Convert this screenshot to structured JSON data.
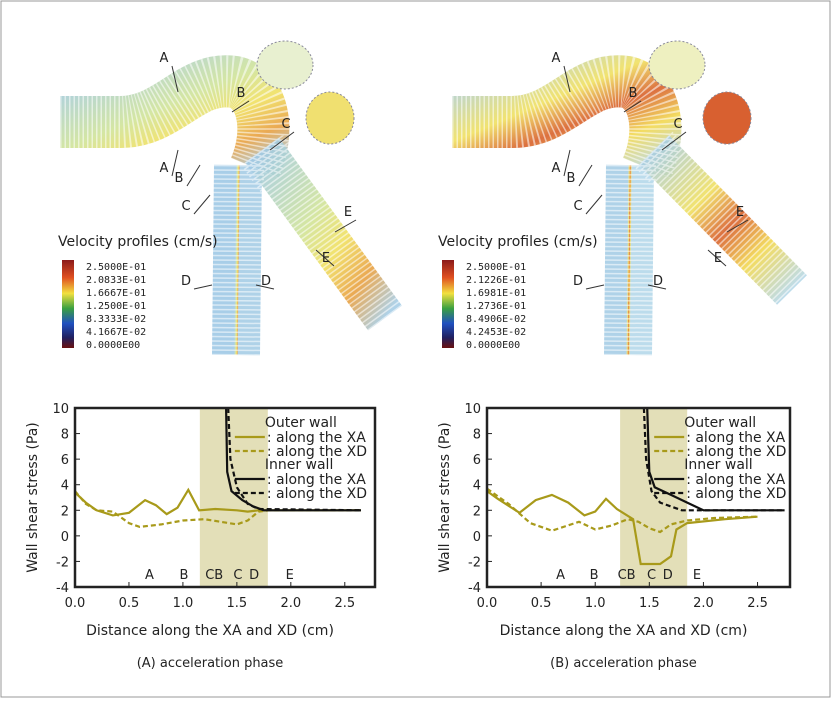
{
  "panels": [
    {
      "legend_title": "Velocity profiles (cm/s)",
      "legend_labels": [
        "2.5000E-01",
        "2.0833E-01",
        "1.6667E-01",
        "1.2500E-01",
        "8.3333E-02",
        "4.1667E-02",
        "0.0000E00"
      ],
      "section_labels": [
        "A",
        "A",
        "B",
        "B",
        "C",
        "C",
        "D",
        "D",
        "E",
        "E"
      ]
    },
    {
      "legend_title": "Velocity profiles (cm/s)",
      "legend_labels": [
        "2.5000E-01",
        "2.1226E-01",
        "1.6981E-01",
        "1.2736E-01",
        "8.4906E-02",
        "4.2453E-02",
        "0.0000E00"
      ],
      "section_labels": [
        "A",
        "A",
        "B",
        "B",
        "C",
        "C",
        "D",
        "D",
        "E",
        "E"
      ]
    }
  ],
  "chart_data": [
    {
      "type": "line",
      "caption": "(A) acceleration phase",
      "y_label": "Wall shear stress (Pa)",
      "x_label": "Distance along the XA and XD (cm)",
      "xlim": [
        0,
        2.78
      ],
      "ylim": [
        -4,
        10
      ],
      "xticks": [
        {
          "value": 0,
          "label": "0.0"
        },
        0.5,
        {
          "value": 1,
          "label": "1.0"
        },
        1.5,
        {
          "value": 2,
          "label": "2.0"
        },
        2.5
      ],
      "yticks": [
        -4,
        -2,
        0,
        2,
        4,
        6,
        8,
        10
      ],
      "shade": [
        1.157,
        1.787
      ],
      "shade_color": "#e3dfb8",
      "legend_groups": [
        "Outer wall",
        "Inner wall"
      ],
      "series": [
        {
          "name": ": along the XA",
          "color": "#a89a1a",
          "dash": false,
          "x": [
            0,
            0.1,
            0.2,
            0.35,
            0.5,
            0.65,
            0.75,
            0.85,
            0.95,
            1.05,
            1.15,
            1.3,
            1.5,
            1.6,
            1.7,
            2.0,
            2.65
          ],
          "values": [
            3.4,
            2.6,
            2.0,
            1.6,
            1.8,
            2.8,
            2.4,
            1.7,
            2.2,
            3.6,
            2.0,
            2.1,
            2.0,
            1.9,
            2.0,
            2.0,
            2.0
          ]
        },
        {
          "name": ": along the XD",
          "color": "#a89a1a",
          "dash": true,
          "x": [
            0,
            0.1,
            0.2,
            0.35,
            0.5,
            0.6,
            0.8,
            1.0,
            1.2,
            1.35,
            1.5,
            1.6,
            1.7,
            1.8,
            2.65
          ],
          "values": [
            3.5,
            2.5,
            2.0,
            1.9,
            1.0,
            0.7,
            0.9,
            1.2,
            1.3,
            1.1,
            0.9,
            1.2,
            1.9,
            2.0,
            2.0
          ]
        },
        {
          "name": ": along the XA",
          "color": "#111111",
          "dash": false,
          "x": [
            1.4,
            1.41,
            1.45,
            1.55,
            1.65,
            1.75,
            2.65
          ],
          "values": [
            10,
            5,
            3.5,
            2.8,
            2.3,
            2.0,
            2.0
          ]
        },
        {
          "name": ": along the XD",
          "color": "#111111",
          "dash": true,
          "x": [
            1.42,
            1.44,
            1.5,
            1.6,
            1.7,
            2.65
          ],
          "values": [
            10,
            6,
            3.8,
            2.5,
            2.1,
            2.0
          ]
        }
      ],
      "annotations": [
        {
          "text": "A",
          "x": 0.69,
          "y": -3
        },
        {
          "text": "B",
          "x": 1.01,
          "y": -3
        },
        {
          "text": "CB",
          "x": 1.29,
          "y": -3
        },
        {
          "text": "C",
          "x": 1.51,
          "y": -3
        },
        {
          "text": "D",
          "x": 1.66,
          "y": -3
        },
        {
          "text": "E",
          "x": 1.99,
          "y": -3
        }
      ]
    },
    {
      "type": "line",
      "caption": "(B) acceleration phase",
      "y_label": "Wall shear stress (Pa)",
      "x_label": "Distance along the XA and XD (cm)",
      "xlim": [
        0,
        2.8
      ],
      "ylim": [
        -4,
        10
      ],
      "xticks": [
        {
          "value": 0,
          "label": "0.0"
        },
        0.5,
        {
          "value": 1,
          "label": "1.0"
        },
        1.5,
        {
          "value": 2,
          "label": "2.0"
        },
        2.5
      ],
      "yticks": [
        -4,
        -2,
        0,
        2,
        4,
        6,
        8,
        10
      ],
      "shade": [
        1.23,
        1.85
      ],
      "shade_color": "#e3dfb8",
      "legend_groups": [
        "Outer wall",
        "Inner wall"
      ],
      "series": [
        {
          "name": ": along the XA",
          "color": "#a89a1a",
          "dash": false,
          "x": [
            0,
            0.1,
            0.3,
            0.45,
            0.6,
            0.75,
            0.9,
            1.0,
            1.1,
            1.2,
            1.35,
            1.42,
            1.6,
            1.7,
            1.75,
            1.85,
            2.2,
            2.5
          ],
          "values": [
            3.5,
            2.9,
            1.8,
            2.8,
            3.2,
            2.6,
            1.6,
            1.9,
            2.9,
            2.1,
            1.3,
            -2.2,
            -2.2,
            -1.6,
            0.5,
            1.0,
            1.3,
            1.5
          ]
        },
        {
          "name": ": along the XD",
          "color": "#a89a1a",
          "dash": true,
          "x": [
            0,
            0.2,
            0.4,
            0.6,
            0.85,
            1.0,
            1.15,
            1.3,
            1.4,
            1.5,
            1.6,
            1.7,
            1.85,
            2.1,
            2.5
          ],
          "values": [
            3.7,
            2.5,
            1.0,
            0.4,
            1.1,
            0.5,
            0.8,
            1.3,
            1.1,
            0.6,
            0.3,
            0.9,
            1.2,
            1.4,
            1.5
          ]
        },
        {
          "name": ": along the XA",
          "color": "#111111",
          "dash": false,
          "x": [
            1.48,
            1.5,
            1.55,
            1.7,
            1.85,
            2.0,
            2.75
          ],
          "values": [
            10,
            5,
            3.8,
            3.2,
            2.6,
            2.0,
            2.0
          ]
        },
        {
          "name": ": along the XD",
          "color": "#111111",
          "dash": true,
          "x": [
            1.45,
            1.47,
            1.52,
            1.6,
            1.8,
            2.75
          ],
          "values": [
            10,
            6,
            3.5,
            2.6,
            2.0,
            2.0
          ]
        }
      ],
      "annotations": [
        {
          "text": "A",
          "x": 0.68,
          "y": -3
        },
        {
          "text": "B",
          "x": 0.99,
          "y": -3
        },
        {
          "text": "CB",
          "x": 1.29,
          "y": -3
        },
        {
          "text": "C",
          "x": 1.52,
          "y": -3
        },
        {
          "text": "D",
          "x": 1.67,
          "y": -3
        },
        {
          "text": "E",
          "x": 1.94,
          "y": -3
        }
      ]
    }
  ]
}
